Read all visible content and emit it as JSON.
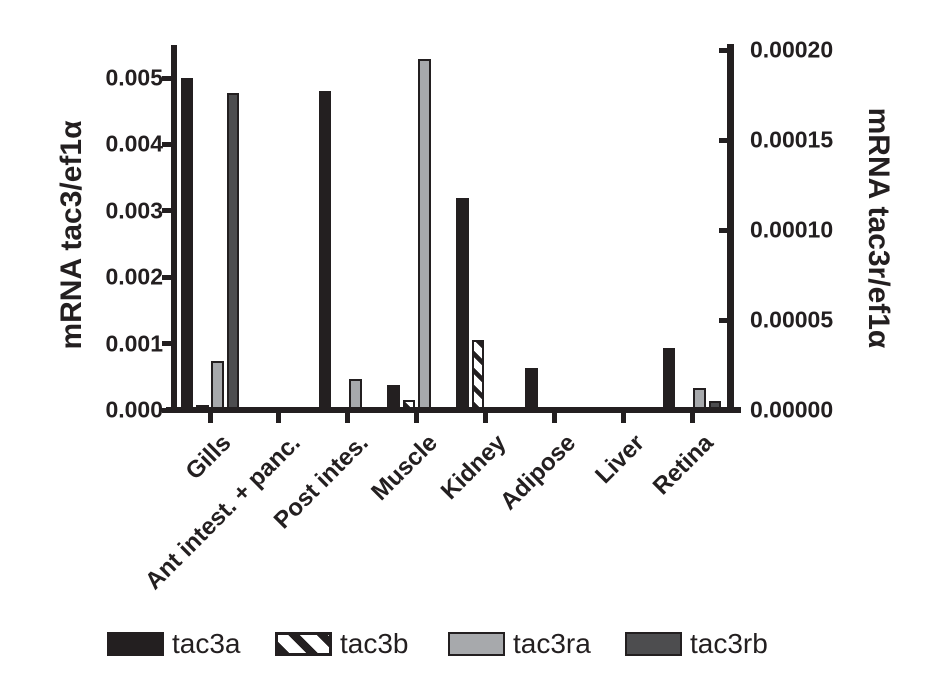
{
  "figure": {
    "background": "#ffffff",
    "ink": "#231f20",
    "light_gray": "#a7a9ac",
    "dark_gray": "#4d4d4f"
  },
  "chart_data": {
    "type": "bar",
    "title": "",
    "grid": false,
    "categories": [
      "Gills",
      "Ant intest. + panc.",
      "Post intes.",
      "Muscle",
      "Kidney",
      "Adipose",
      "Liver",
      "Retina"
    ],
    "left_axis": {
      "label": "mRNA tac3/ef1α",
      "range": [
        0,
        0.005
      ],
      "tick_values": [
        0,
        0.001,
        0.002,
        0.003,
        0.004,
        0.005
      ],
      "tick_labels": [
        "0.000",
        "0.001",
        "0.002",
        "0.003",
        "0.004",
        "0.005"
      ]
    },
    "right_axis": {
      "label": "mRNA tac3r/ef1α",
      "range": [
        0,
        0.0002
      ],
      "tick_values": [
        0,
        5e-05,
        0.0001,
        0.00015,
        0.0002
      ],
      "tick_labels": [
        "0.00000",
        "0.00005",
        "0.00010",
        "0.00015",
        "0.00020"
      ]
    },
    "series": [
      {
        "name": "tac3a",
        "axis": "left",
        "pattern": "solid",
        "fill": "#231f20",
        "values": [
          0.005,
          0,
          0.0048,
          0.00038,
          0.0032,
          0.00063,
          0,
          0.00094
        ]
      },
      {
        "name": "tac3b",
        "axis": "left",
        "pattern": "diagonal-hatch",
        "fill": "#ffffff",
        "values": [
          8e-05,
          0,
          0,
          0.00015,
          0.00105,
          0,
          0,
          0
        ]
      },
      {
        "name": "tac3ra",
        "axis": "right",
        "pattern": "solid",
        "fill": "#a7a9ac",
        "values": [
          2.7e-05,
          0,
          1.7e-05,
          0.000195,
          0,
          0,
          0,
          1.2e-05
        ]
      },
      {
        "name": "tac3rb",
        "axis": "right",
        "pattern": "solid",
        "fill": "#4d4d4f",
        "values": [
          0.000176,
          0,
          0,
          0,
          0,
          1.5e-06,
          0,
          5e-06
        ]
      }
    ],
    "legend": {
      "position": "bottom",
      "entries": [
        "tac3a",
        "tac3b",
        "tac3ra",
        "tac3rb"
      ]
    }
  }
}
